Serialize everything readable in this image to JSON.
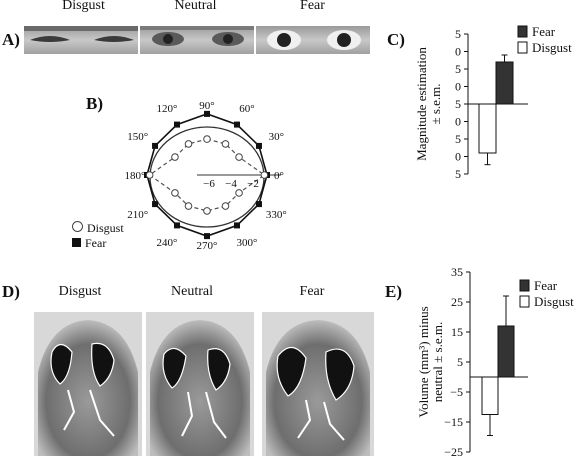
{
  "panel_a": {
    "letter": "A)",
    "labels": [
      "Disgust",
      "Neutral",
      "Fear"
    ]
  },
  "panel_b": {
    "letter": "B)",
    "angle_labels": [
      "90°",
      "60°",
      "30°",
      "0°",
      "330°",
      "300°",
      "270°",
      "240°",
      "210°",
      "180°",
      "150°",
      "120°"
    ],
    "radial_ticks": [
      "−6",
      "−4",
      "−2"
    ],
    "legend": {
      "disgust": "Disgust",
      "fear": "Fear"
    }
  },
  "panel_d": {
    "letter": "D)",
    "labels": [
      "Disgust",
      "Neutral",
      "Fear"
    ]
  },
  "chart_data": [
    {
      "panel": "C)",
      "type": "bar",
      "categories": [
        "Disgust",
        "Fear"
      ],
      "values": [
        -2.1,
        1.8
      ],
      "errors": [
        0.5,
        0.3
      ],
      "ylabel_line1": "Magnitude estimation",
      "ylabel_line2": "± s.e.m.",
      "ylim": [
        -3,
        3
      ],
      "tick_labels": [
        "5",
        "0",
        "5",
        "0",
        "5",
        "0",
        "5",
        "0",
        "5"
      ],
      "legend": [
        "Fear",
        "Disgust"
      ],
      "colors": {
        "Fear": "#333333",
        "Disgust": "#ffffff"
      }
    },
    {
      "panel": "E)",
      "type": "bar",
      "categories": [
        "Disgust",
        "Fear"
      ],
      "values": [
        -12.5,
        17
      ],
      "errors": [
        7,
        10
      ],
      "ylabel_line1": "Volume (mm³) minus",
      "ylabel_line2": "neutral ± s.e.m.",
      "ylim": [
        -25,
        35
      ],
      "tick_labels": [
        "35",
        "25",
        "15",
        "5",
        "−5",
        "−15",
        "−25"
      ],
      "legend": [
        "Fear",
        "Disgust"
      ],
      "colors": {
        "Fear": "#333333",
        "Disgust": "#ffffff"
      }
    }
  ]
}
